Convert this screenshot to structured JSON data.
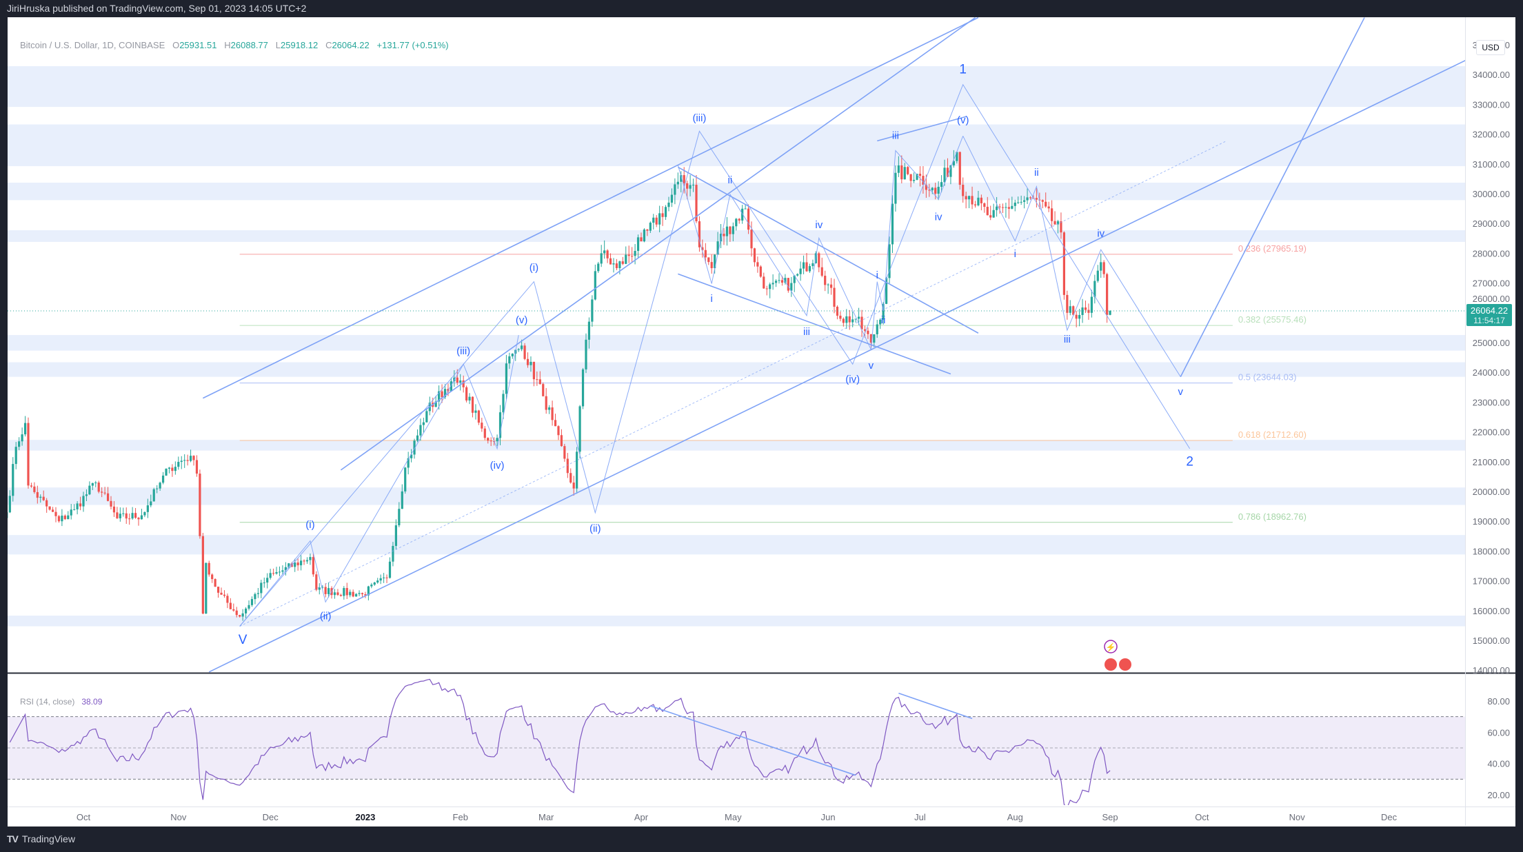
{
  "header": {
    "published": "JiriHruska published on TradingView.com, Sep 01, 2023 14:05 UTC+2"
  },
  "footer": {
    "brand": "TradingView",
    "logo_glyph": "TV"
  },
  "legend": {
    "symbol": "Bitcoin / U.S. Dollar, 1D, COINBASE",
    "o_label": "O",
    "o": "25931.51",
    "h_label": "H",
    "h": "26088.77",
    "l_label": "L",
    "l": "25918.12",
    "c_label": "C",
    "c": "26064.22",
    "change": "+131.77 (+0.51%)"
  },
  "currency": "USD",
  "last_price": {
    "price": "26064.22",
    "countdown": "11:54:17",
    "value": 26064.22
  },
  "rsi_legend": {
    "label": "RSI (14, close)",
    "value": "38.09"
  },
  "colors": {
    "up": "#26a69a",
    "down": "#ef5350",
    "drawing": "#7ea2f6",
    "zone": "#e8effc",
    "rsi": "#7e57c2",
    "rsi_band": "#f0ecf9",
    "topbar": "#1e222d"
  },
  "chart_data": {
    "type": "candlestick",
    "price_axis": {
      "min": 14000,
      "max": 35000,
      "step": 1000,
      "ticks": [
        "35000.00",
        "34000.00",
        "33000.00",
        "32000.00",
        "31000.00",
        "30000.00",
        "29000.00",
        "28000.00",
        "27000.00",
        "26000.00",
        "25000.00",
        "24000.00",
        "23000.00",
        "22000.00",
        "21000.00",
        "20000.00",
        "19000.00",
        "18000.00",
        "17000.00",
        "16000.00",
        "15000.00",
        "14000.00"
      ]
    },
    "time_axis": {
      "ticks": [
        {
          "label": "Oct",
          "date": "2022-10-01"
        },
        {
          "label": "Nov",
          "date": "2022-11-01"
        },
        {
          "label": "Dec",
          "date": "2022-12-01"
        },
        {
          "label": "2023",
          "date": "2023-01-01",
          "bold": true
        },
        {
          "label": "Feb",
          "date": "2023-02-01"
        },
        {
          "label": "Mar",
          "date": "2023-03-01"
        },
        {
          "label": "Apr",
          "date": "2023-04-01"
        },
        {
          "label": "May",
          "date": "2023-05-01"
        },
        {
          "label": "Jun",
          "date": "2023-06-01"
        },
        {
          "label": "Jul",
          "date": "2023-07-01"
        },
        {
          "label": "Aug",
          "date": "2023-08-01"
        },
        {
          "label": "Sep",
          "date": "2023-09-01"
        },
        {
          "label": "Oct",
          "date": "2023-10-01"
        },
        {
          "label": "Nov",
          "date": "2023-11-01"
        },
        {
          "label": "Dec",
          "date": "2023-12-01"
        }
      ]
    },
    "close_path": [
      [
        "2022-09-06",
        19300
      ],
      [
        "2022-09-09",
        21500
      ],
      [
        "2022-09-12",
        22300
      ],
      [
        "2022-09-13",
        20200
      ],
      [
        "2022-09-19",
        19500
      ],
      [
        "2022-09-23",
        19000
      ],
      [
        "2022-09-28",
        19400
      ],
      [
        "2022-10-05",
        20300
      ],
      [
        "2022-10-12",
        19100
      ],
      [
        "2022-10-20",
        19200
      ],
      [
        "2022-10-25",
        20100
      ],
      [
        "2022-10-29",
        20800
      ],
      [
        "2022-11-05",
        21200
      ],
      [
        "2022-11-07",
        20600
      ],
      [
        "2022-11-08",
        18500
      ],
      [
        "2022-11-09",
        15900
      ],
      [
        "2022-11-10",
        17600
      ],
      [
        "2022-11-14",
        16600
      ],
      [
        "2022-11-21",
        15800
      ],
      [
        "2022-11-30",
        17100
      ],
      [
        "2022-12-14",
        17800
      ],
      [
        "2022-12-16",
        16700
      ],
      [
        "2022-12-31",
        16550
      ],
      [
        "2023-01-08",
        17100
      ],
      [
        "2023-01-14",
        20800
      ],
      [
        "2023-01-21",
        22700
      ],
      [
        "2023-01-29",
        23700
      ],
      [
        "2023-02-02",
        23500
      ],
      [
        "2023-02-09",
        21800
      ],
      [
        "2023-02-13",
        21800
      ],
      [
        "2023-02-16",
        24300
      ],
      [
        "2023-02-21",
        24900
      ],
      [
        "2023-02-28",
        23200
      ],
      [
        "2023-03-03",
        22400
      ],
      [
        "2023-03-09",
        20300
      ],
      [
        "2023-03-10",
        20100
      ],
      [
        "2023-03-13",
        24100
      ],
      [
        "2023-03-17",
        27400
      ],
      [
        "2023-03-19",
        28000
      ],
      [
        "2023-03-24",
        27500
      ],
      [
        "2023-04-01",
        28400
      ],
      [
        "2023-04-10",
        29700
      ],
      [
        "2023-04-13",
        30400
      ],
      [
        "2023-04-18",
        30300
      ],
      [
        "2023-04-20",
        28200
      ],
      [
        "2023-04-24",
        27500
      ],
      [
        "2023-04-26",
        28400
      ],
      [
        "2023-05-05",
        29500
      ],
      [
        "2023-05-08",
        27700
      ],
      [
        "2023-05-12",
        26800
      ],
      [
        "2023-05-20",
        27000
      ],
      [
        "2023-05-28",
        28000
      ],
      [
        "2023-06-05",
        25800
      ],
      [
        "2023-06-10",
        25800
      ],
      [
        "2023-06-15",
        25000
      ],
      [
        "2023-06-19",
        26300
      ],
      [
        "2023-06-21",
        28300
      ],
      [
        "2023-06-23",
        30700
      ],
      [
        "2023-07-01",
        30600
      ],
      [
        "2023-07-06",
        30000
      ],
      [
        "2023-07-13",
        31400
      ],
      [
        "2023-07-14",
        30300
      ],
      [
        "2023-07-24",
        29200
      ],
      [
        "2023-08-01",
        29700
      ],
      [
        "2023-08-08",
        29800
      ],
      [
        "2023-08-16",
        28700
      ],
      [
        "2023-08-17",
        26600
      ],
      [
        "2023-08-18",
        26000
      ],
      [
        "2023-08-25",
        26000
      ],
      [
        "2023-08-29",
        27700
      ],
      [
        "2023-08-30",
        27300
      ],
      [
        "2023-08-31",
        25930
      ],
      [
        "2023-09-01",
        26064.22
      ]
    ],
    "zones": [
      [
        32914,
        34283
      ],
      [
        30925,
        32327
      ],
      [
        29784,
        30371
      ],
      [
        28382,
        28773
      ],
      [
        24731,
        25253
      ],
      [
        23851,
        24340
      ],
      [
        21373,
        21732
      ],
      [
        19548,
        20134
      ],
      [
        17885,
        18537
      ],
      [
        15473,
        15831
      ]
    ],
    "fib": {
      "from": "2022-11-21",
      "to": "2023-10-11",
      "levels": [
        {
          "label": "0.236 (27965.19)",
          "price": 27965.19,
          "color": "#f7a1a1"
        },
        {
          "label": "0.382 (25575.46)",
          "price": 25575.46,
          "color": "#b9e0bb"
        },
        {
          "label": "0.5 (23644.03)",
          "price": 23644.03,
          "color": "#a9bdf5"
        },
        {
          "label": "0.618 (21712.60)",
          "price": 21712.6,
          "color": "#fbc59a"
        },
        {
          "label": "0.786 (18962.76)",
          "price": 18962.76,
          "color": "#a5d6a7"
        }
      ]
    },
    "trendlines": [
      [
        [
          "2022-11-09",
          23134
        ],
        [
          "2023-07-20",
          35913
        ]
      ],
      [
        [
          "2022-11-11",
          13940
        ],
        [
          "2023-12-26",
          34478
        ]
      ],
      [
        [
          "2022-12-24",
          20721
        ],
        [
          "2023-07-19",
          35913
        ]
      ],
      [
        [
          "2023-04-13",
          30892
        ],
        [
          "2023-07-20",
          25318
        ]
      ],
      [
        [
          "2023-04-13",
          27306
        ],
        [
          "2023-07-11",
          23948
        ]
      ],
      [
        [
          "2023-06-17",
          31773
        ],
        [
          "2023-07-16",
          32588
        ]
      ],
      [
        [
          "2023-09-24",
          23851
        ],
        [
          "2023-11-23",
          35913
        ]
      ]
    ],
    "dotted_lines": [
      [
        [
          "2022-11-21",
          15473
        ],
        [
          "2023-10-09",
          31773
        ]
      ]
    ],
    "wave_paths": [
      [
        [
          "2022-11-21",
          15473
        ],
        [
          "2023-02-25",
          27046
        ],
        [
          "2023-03-17",
          19287
        ],
        [
          "2023-04-20",
          32099
        ],
        [
          "2023-06-09",
          24275
        ],
        [
          "2023-07-15",
          33663
        ],
        [
          "2023-09-27",
          21438
        ]
      ],
      [
        [
          "2022-11-21",
          15473
        ],
        [
          "2022-12-14",
          18341
        ],
        [
          "2022-12-19",
          16288
        ],
        [
          "2023-02-02",
          24275
        ],
        [
          "2023-02-13",
          21438
        ],
        [
          "2023-02-20",
          25253
        ]
      ],
      [
        [
          "2023-04-13",
          30958
        ],
        [
          "2023-04-24",
          26980
        ],
        [
          "2023-04-30",
          29980
        ],
        [
          "2023-05-25",
          25905
        ],
        [
          "2023-05-29",
          28512
        ],
        [
          "2023-06-15",
          24764
        ]
      ],
      [
        [
          "2023-06-15",
          24764
        ],
        [
          "2023-06-17",
          27046
        ],
        [
          "2023-06-19",
          26068
        ],
        [
          "2023-06-23",
          31447
        ],
        [
          "2023-07-07",
          29817
        ],
        [
          "2023-07-15",
          31936
        ]
      ],
      [
        [
          "2023-07-15",
          31936
        ],
        [
          "2023-08-01",
          28415
        ],
        [
          "2023-08-08",
          30240
        ],
        [
          "2023-08-18",
          25416
        ],
        [
          "2023-08-29",
          28121
        ],
        [
          "2023-09-24",
          23851
        ]
      ]
    ],
    "wave_labels": [
      {
        "t": "V",
        "date": "2022-11-22",
        "price": 15000,
        "big": true
      },
      {
        "t": "(i)",
        "date": "2022-12-14",
        "price": 18863
      },
      {
        "t": "(ii)",
        "date": "2022-12-19",
        "price": 15799
      },
      {
        "t": "(iii)",
        "date": "2023-02-02",
        "price": 24698
      },
      {
        "t": "(iv)",
        "date": "2023-02-13",
        "price": 20852
      },
      {
        "t": "(v)",
        "date": "2023-02-21",
        "price": 25742
      },
      {
        "t": "(i)",
        "date": "2023-02-25",
        "price": 27502
      },
      {
        "t": "(ii)",
        "date": "2023-03-17",
        "price": 18733
      },
      {
        "t": "(iii)",
        "date": "2023-04-20",
        "price": 32522
      },
      {
        "t": "i",
        "date": "2023-04-24",
        "price": 26459
      },
      {
        "t": "ii",
        "date": "2023-04-30",
        "price": 30436
      },
      {
        "t": "iii",
        "date": "2023-05-25",
        "price": 25350
      },
      {
        "t": "iv",
        "date": "2023-05-29",
        "price": 28936
      },
      {
        "t": "v",
        "date": "2023-06-15",
        "price": 24209
      },
      {
        "t": "(iv)",
        "date": "2023-06-09",
        "price": 23753
      },
      {
        "t": "i",
        "date": "2023-06-17",
        "price": 27241
      },
      {
        "t": "ii",
        "date": "2023-06-19",
        "price": 25742
      },
      {
        "t": "iii",
        "date": "2023-06-23",
        "price": 31936
      },
      {
        "t": "iv",
        "date": "2023-07-07",
        "price": 29197
      },
      {
        "t": "(v)",
        "date": "2023-07-15",
        "price": 32457
      },
      {
        "t": "1",
        "date": "2023-07-15",
        "price": 34152,
        "big": true
      },
      {
        "t": "i",
        "date": "2023-08-01",
        "price": 27958
      },
      {
        "t": "ii",
        "date": "2023-08-08",
        "price": 30697
      },
      {
        "t": "iii",
        "date": "2023-08-18",
        "price": 25090
      },
      {
        "t": "iv",
        "date": "2023-08-29",
        "price": 28643
      },
      {
        "t": "v",
        "date": "2023-09-24",
        "price": 23329
      },
      {
        "t": "2",
        "date": "2023-09-27",
        "price": 20982,
        "big": true
      }
    ],
    "rsi": {
      "period": 14,
      "levels": [
        70,
        50,
        30
      ],
      "axis_ticks": [
        "80.00",
        "60.00",
        "40.00",
        "20.00"
      ],
      "axis_values": [
        80,
        60,
        40,
        20
      ],
      "trendlines": [
        [
          [
            "2023-04-04",
            76.9
          ],
          [
            "2023-06-10",
            32.5
          ]
        ],
        [
          [
            "2023-06-24",
            85
          ],
          [
            "2023-07-18",
            68.8
          ]
        ]
      ]
    }
  }
}
